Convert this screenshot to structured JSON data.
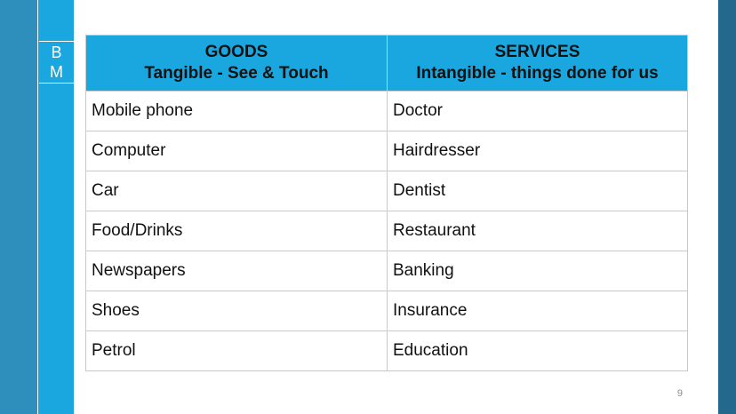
{
  "sidebar": {
    "logo_letters": [
      "B",
      "M"
    ]
  },
  "table": {
    "headers": [
      {
        "title": "GOODS",
        "subtitle": "Tangible - See & Touch"
      },
      {
        "title": "SERVICES",
        "subtitle": "Intangible - things done for us"
      }
    ],
    "rows": [
      [
        "Mobile phone",
        "Doctor"
      ],
      [
        "Computer",
        "Hairdresser"
      ],
      [
        "Car",
        "Dentist"
      ],
      [
        "Food/Drinks",
        "Restaurant"
      ],
      [
        "Newspapers",
        "Banking"
      ],
      [
        "Shoes",
        "Insurance"
      ],
      [
        "Petrol",
        "Education"
      ]
    ]
  },
  "footer": {
    "page_number": "9"
  },
  "colors": {
    "header_fill": "#1aa7df",
    "left_band": "#2f8fbc",
    "right_band": "#25688e"
  }
}
